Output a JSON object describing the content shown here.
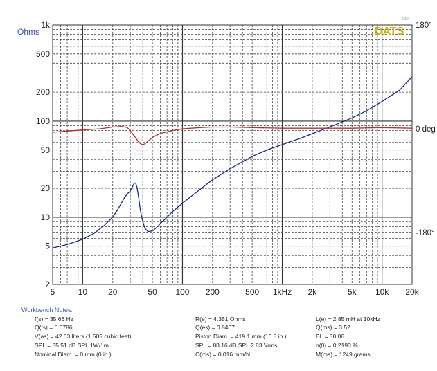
{
  "brand": {
    "name": "DATS",
    "version": "2.12"
  },
  "chart_data": {
    "type": "line",
    "xscale": "log",
    "yscale": "log",
    "xlim": [
      5,
      20000
    ],
    "ylim": [
      2,
      1000
    ],
    "ylabel": "Ohms",
    "grid": true,
    "x_ticks": [
      {
        "value": 5,
        "label": "5"
      },
      {
        "value": 10,
        "label": "10"
      },
      {
        "value": 20,
        "label": "20"
      },
      {
        "value": 50,
        "label": "50"
      },
      {
        "value": 100,
        "label": "100"
      },
      {
        "value": 200,
        "label": "200"
      },
      {
        "value": 500,
        "label": "500"
      },
      {
        "value": 1000,
        "label": "1kHz"
      },
      {
        "value": 2000,
        "label": "2k"
      },
      {
        "value": 5000,
        "label": "5k"
      },
      {
        "value": 10000,
        "label": "10k"
      },
      {
        "value": 20000,
        "label": "20k"
      }
    ],
    "y_ticks": [
      {
        "value": 1000,
        "label": "1k"
      },
      {
        "value": 500,
        "label": "500"
      },
      {
        "value": 200,
        "label": "200"
      },
      {
        "value": 100,
        "label": "100"
      },
      {
        "value": 50,
        "label": "50"
      },
      {
        "value": 20,
        "label": "20"
      },
      {
        "value": 10,
        "label": "10"
      },
      {
        "value": 5,
        "label": "5"
      },
      {
        "value": 2,
        "label": "2"
      }
    ],
    "phase_axis": {
      "range_deg": [
        -270,
        180
      ],
      "ticks": [
        {
          "value": 180,
          "label": "180°"
        },
        {
          "value": 0,
          "label": "0 deg"
        },
        {
          "value": -180,
          "label": "-180°"
        }
      ]
    },
    "series": [
      {
        "color": "#1a2a7a",
        "axis": "impedance",
        "x": [
          5,
          7,
          10,
          13,
          16,
          20,
          22,
          24,
          26,
          28,
          30,
          32,
          33,
          34,
          35,
          36,
          37,
          38,
          40,
          42,
          45,
          50,
          55,
          60,
          70,
          80,
          100,
          150,
          200,
          300,
          500,
          700,
          1000,
          1500,
          2000,
          3000,
          5000,
          7000,
          10000,
          15000,
          20000
        ],
        "y": [
          4.8,
          5.2,
          5.9,
          6.8,
          8.0,
          10.0,
          11.6,
          13.6,
          15.8,
          17.5,
          18.7,
          21.5,
          22.8,
          22.5,
          20.5,
          17.2,
          14.2,
          11.5,
          9.0,
          7.7,
          7.1,
          7.2,
          7.8,
          8.6,
          10.0,
          11.5,
          14.0,
          19.5,
          24.5,
          32.0,
          43.0,
          50.0,
          57.0,
          66.0,
          74.0,
          87.0,
          108.0,
          128.0,
          160.0,
          210.0,
          290.0
        ]
      },
      {
        "color": "#b03030",
        "axis": "phase",
        "x": [
          5,
          7,
          10,
          15,
          20,
          25,
          28,
          30,
          32,
          34,
          36,
          38,
          40,
          42,
          45,
          50,
          60,
          80,
          100,
          150,
          200,
          300,
          500,
          1000,
          2000,
          5000,
          10000,
          20000
        ],
        "y": [
          -6,
          -4,
          -2,
          0,
          3,
          4,
          2,
          -3,
          -10,
          -16,
          -22,
          -26,
          -28,
          -26,
          -22,
          -15,
          -8,
          -3,
          0,
          2,
          3,
          3,
          2,
          1,
          1,
          1,
          2,
          1
        ]
      }
    ]
  },
  "notes": {
    "title": "Workbench Notes:",
    "col1": [
      "f(s) = 35.66 Hz",
      "Q(ts) = 0.6786",
      "V(as) = 42.63 liters  (1.505 cubic feet)",
      "SPL = 85.51 dB SPL 1W/1m",
      "Nominal Diam. = 0 mm (0 in.)"
    ],
    "col2": [
      "R(e) = 4.351 Ohms",
      "Q(es) = 0.8407",
      "Piston Diam. = 419.1 mm (16.5 in.)",
      "SPL = 88.16 dB SPL 2.83 Vrms",
      "C(ms) = 0.016 mm/N"
    ],
    "col3": [
      "L(e) = 2.85 mH at 10kHz",
      "Q(ms) = 3.52",
      "BL = 38.06",
      "n(0) = 0.2193 %",
      "M(ms) = 1249 grams"
    ]
  }
}
